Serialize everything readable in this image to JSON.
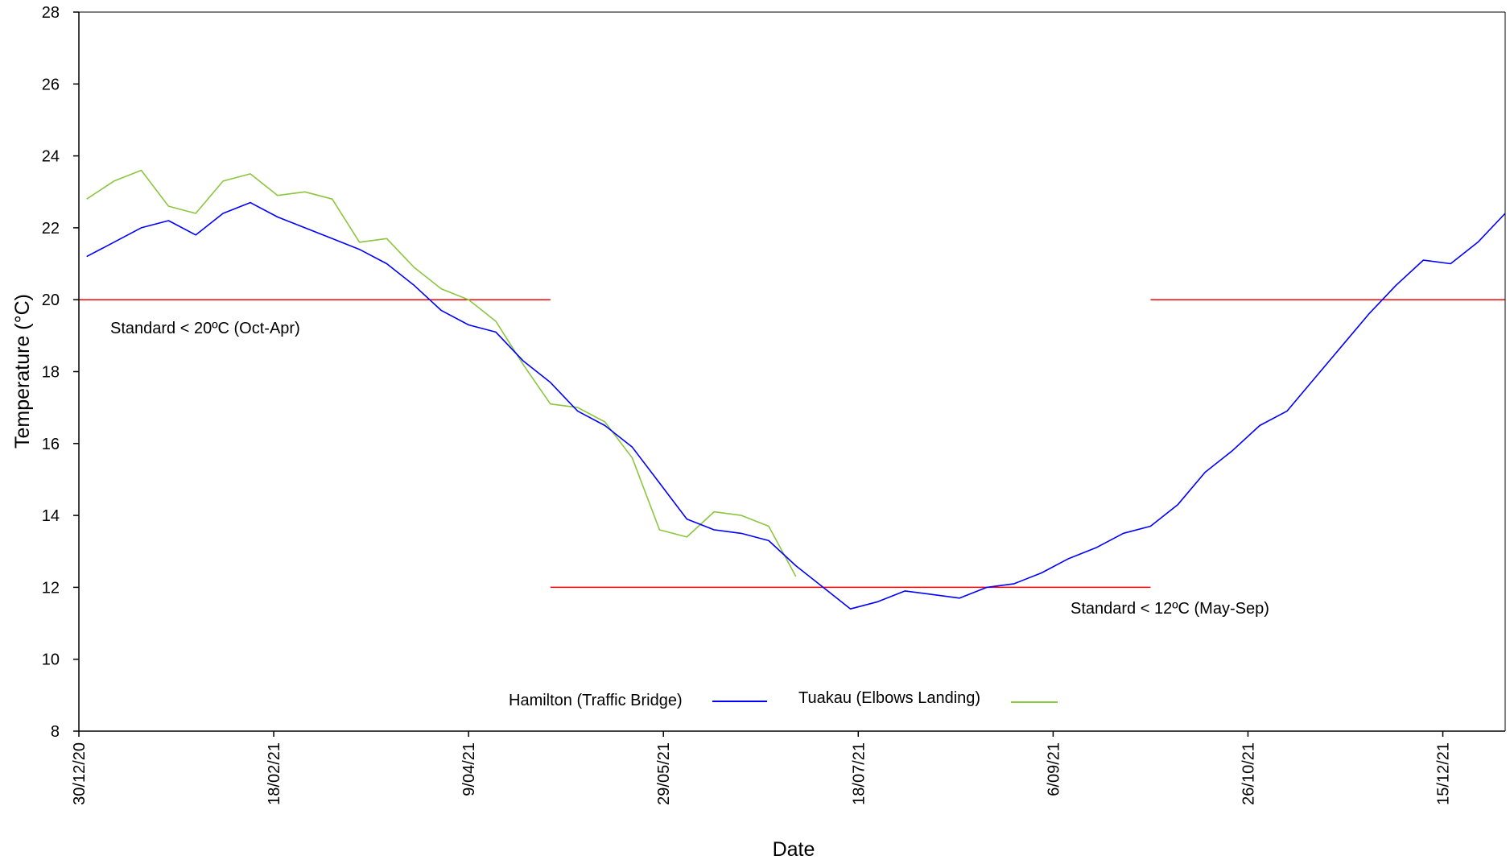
{
  "chart_data": {
    "type": "line",
    "xlabel": "Date",
    "ylabel": "Temperature (°C)",
    "ylim": [
      8,
      28
    ],
    "yticks": [
      8,
      10,
      12,
      14,
      16,
      18,
      20,
      22,
      24,
      26,
      28
    ],
    "xlim": [
      "2020-12-30",
      "2021-12-31"
    ],
    "xticks": [
      {
        "date": "2020-12-30",
        "label": "30/12/20"
      },
      {
        "date": "2021-02-18",
        "label": "18/02/21"
      },
      {
        "date": "2021-04-09",
        "label": "9/04/21"
      },
      {
        "date": "2021-05-29",
        "label": "29/05/21"
      },
      {
        "date": "2021-07-18",
        "label": "18/07/21"
      },
      {
        "date": "2021-09-06",
        "label": "6/09/21"
      },
      {
        "date": "2021-10-26",
        "label": "26/10/21"
      },
      {
        "date": "2021-12-15",
        "label": "15/12/21"
      }
    ],
    "grid": false,
    "legend_position": "bottom-center",
    "series": [
      {
        "name": "Hamilton (Traffic Bridge)",
        "color": "#0000ff",
        "points": [
          [
            "2021-01-01",
            21.2
          ],
          [
            "2021-01-08",
            21.6
          ],
          [
            "2021-01-15",
            22.0
          ],
          [
            "2021-01-22",
            22.2
          ],
          [
            "2021-01-29",
            21.8
          ],
          [
            "2021-02-05",
            22.4
          ],
          [
            "2021-02-12",
            22.7
          ],
          [
            "2021-02-19",
            22.3
          ],
          [
            "2021-02-26",
            22.0
          ],
          [
            "2021-03-05",
            21.7
          ],
          [
            "2021-03-12",
            21.4
          ],
          [
            "2021-03-19",
            21.0
          ],
          [
            "2021-03-26",
            20.4
          ],
          [
            "2021-04-02",
            19.7
          ],
          [
            "2021-04-09",
            19.3
          ],
          [
            "2021-04-16",
            19.1
          ],
          [
            "2021-04-23",
            18.3
          ],
          [
            "2021-04-30",
            17.7
          ],
          [
            "2021-05-07",
            16.9
          ],
          [
            "2021-05-14",
            16.5
          ],
          [
            "2021-05-21",
            15.9
          ],
          [
            "2021-05-28",
            14.9
          ],
          [
            "2021-06-04",
            13.9
          ],
          [
            "2021-06-11",
            13.6
          ],
          [
            "2021-06-18",
            13.5
          ],
          [
            "2021-06-25",
            13.3
          ],
          [
            "2021-07-02",
            12.6
          ],
          [
            "2021-07-09",
            12.0
          ],
          [
            "2021-07-16",
            11.4
          ],
          [
            "2021-07-23",
            11.6
          ],
          [
            "2021-07-30",
            11.9
          ],
          [
            "2021-08-06",
            11.8
          ],
          [
            "2021-08-13",
            11.7
          ],
          [
            "2021-08-20",
            12.0
          ],
          [
            "2021-08-27",
            12.1
          ],
          [
            "2021-09-03",
            12.4
          ],
          [
            "2021-09-10",
            12.8
          ],
          [
            "2021-09-17",
            13.1
          ],
          [
            "2021-09-24",
            13.5
          ],
          [
            "2021-10-01",
            13.7
          ],
          [
            "2021-10-08",
            14.3
          ],
          [
            "2021-10-15",
            15.2
          ],
          [
            "2021-10-22",
            15.8
          ],
          [
            "2021-10-29",
            16.5
          ],
          [
            "2021-11-05",
            16.9
          ],
          [
            "2021-11-12",
            17.8
          ],
          [
            "2021-11-19",
            18.7
          ],
          [
            "2021-11-26",
            19.6
          ],
          [
            "2021-12-03",
            20.4
          ],
          [
            "2021-12-10",
            21.1
          ],
          [
            "2021-12-17",
            21.0
          ],
          [
            "2021-12-24",
            21.6
          ],
          [
            "2021-12-31",
            22.4
          ]
        ]
      },
      {
        "name": "Tuakau (Elbows Landing)",
        "color": "#8cc63f",
        "points": [
          [
            "2021-01-01",
            22.8
          ],
          [
            "2021-01-08",
            23.3
          ],
          [
            "2021-01-15",
            23.6
          ],
          [
            "2021-01-22",
            22.6
          ],
          [
            "2021-01-29",
            22.4
          ],
          [
            "2021-02-05",
            23.3
          ],
          [
            "2021-02-12",
            23.5
          ],
          [
            "2021-02-19",
            22.9
          ],
          [
            "2021-02-26",
            23.0
          ],
          [
            "2021-03-05",
            22.8
          ],
          [
            "2021-03-12",
            21.6
          ],
          [
            "2021-03-19",
            21.7
          ],
          [
            "2021-03-26",
            20.9
          ],
          [
            "2021-04-02",
            20.3
          ],
          [
            "2021-04-09",
            20.0
          ],
          [
            "2021-04-16",
            19.4
          ],
          [
            "2021-04-23",
            18.2
          ],
          [
            "2021-04-30",
            17.1
          ],
          [
            "2021-05-07",
            17.0
          ],
          [
            "2021-05-14",
            16.6
          ],
          [
            "2021-05-21",
            15.6
          ],
          [
            "2021-05-28",
            13.6
          ],
          [
            "2021-06-04",
            13.4
          ],
          [
            "2021-06-11",
            14.1
          ],
          [
            "2021-06-18",
            14.0
          ],
          [
            "2021-06-25",
            13.7
          ],
          [
            "2021-07-02",
            12.3
          ]
        ]
      }
    ],
    "annotations": [
      {
        "text": "Standard < 20ºC (Oct-Apr)"
      },
      {
        "text": "Standard < 12ºC (May-Sep)"
      }
    ],
    "reference_lines": [
      {
        "value": 20,
        "from": "2020-12-30",
        "to": "2021-04-30",
        "color": "#ff0000"
      },
      {
        "value": 12,
        "from": "2021-04-30",
        "to": "2021-10-01",
        "color": "#ff0000"
      },
      {
        "value": 20,
        "from": "2021-10-01",
        "to": "2021-12-31",
        "color": "#ff0000"
      }
    ]
  }
}
